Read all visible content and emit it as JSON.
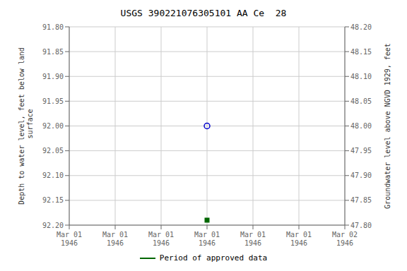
{
  "chart_data": {
    "type": "scatter",
    "title": "USGS 390221076305101 AA Ce  28",
    "categories": [
      "Mar 01\n1946",
      "Mar 01\n1946",
      "Mar 01\n1946",
      "Mar 01\n1946",
      "Mar 01\n1946",
      "Mar 01\n1946",
      "Mar 02\n1946"
    ],
    "series": [
      {
        "color": "#0000cc",
        "marker": "circle",
        "values": [
          null,
          null,
          null,
          92.0,
          null,
          null,
          null
        ]
      },
      {
        "name": "Period of approved data",
        "color": "#006600",
        "marker": "square",
        "values": [
          null,
          null,
          null,
          92.19,
          null,
          null,
          null
        ]
      }
    ],
    "ylabel": "Depth to water level, feet below land\n surface",
    "y2label": "Groundwater level above NGVD 1929, feet",
    "ylim": [
      92.2,
      91.8
    ],
    "yticks": [
      {
        "value": 91.8,
        "label": "91.80"
      },
      {
        "value": 91.85,
        "label": "91.85"
      },
      {
        "value": 91.9,
        "label": "91.90"
      },
      {
        "value": 91.95,
        "label": "91.95"
      },
      {
        "value": 92.0,
        "label": "92.00"
      },
      {
        "value": 92.05,
        "label": "92.05"
      },
      {
        "value": 92.1,
        "label": "92.10"
      },
      {
        "value": 92.15,
        "label": "92.15"
      },
      {
        "value": 92.2,
        "label": "92.20"
      }
    ],
    "y2lim": [
      47.8,
      48.2
    ],
    "y2ticks": [
      {
        "value": 48.2,
        "label": "48.20"
      },
      {
        "value": 48.15,
        "label": "48.15"
      },
      {
        "value": 48.1,
        "label": "48.10"
      },
      {
        "value": 48.05,
        "label": "48.05"
      },
      {
        "value": 48.0,
        "label": "48.00"
      },
      {
        "value": 47.95,
        "label": "47.95"
      },
      {
        "value": 47.9,
        "label": "47.90"
      },
      {
        "value": 47.85,
        "label": "47.85"
      },
      {
        "value": 47.8,
        "label": "47.80"
      }
    ],
    "grid": true,
    "legend": "bottom"
  }
}
